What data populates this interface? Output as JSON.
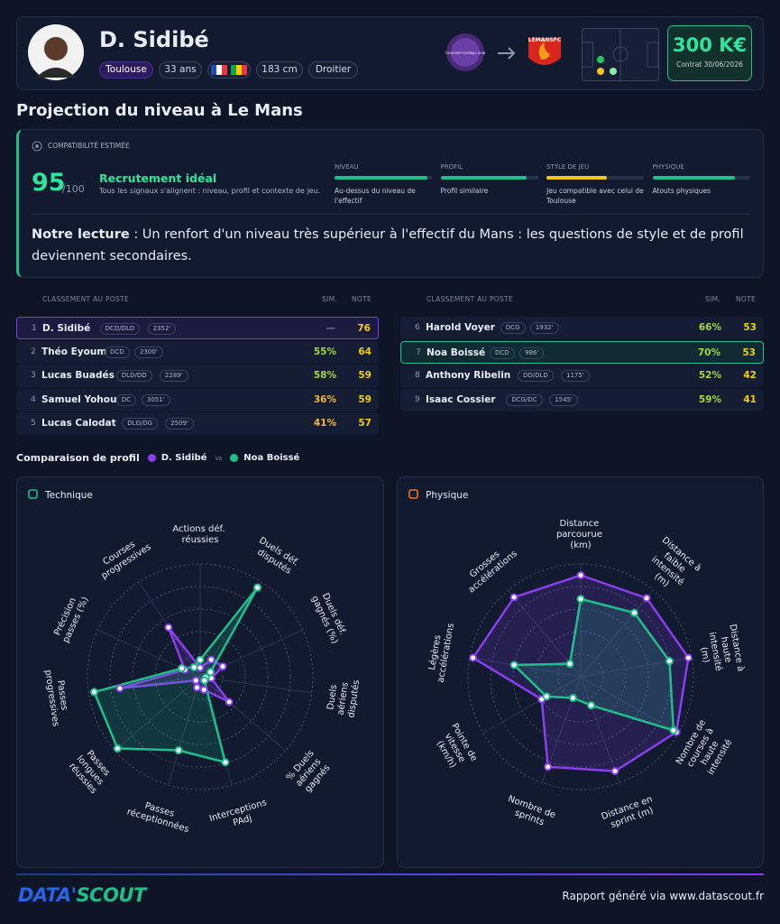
{
  "header": {
    "name": "D. Sidibé",
    "club": "Toulouse",
    "age": "33 ans",
    "height": "183 cm",
    "foot": "Droitier",
    "value": "300 K€",
    "contract": "Contrat 30/06/2026",
    "club_from": "TOULOUSE FOOTBALL CLUB",
    "club_to": "LEMANSFC"
  },
  "section_title": "Projection du niveau à Le Mans",
  "compatibility": {
    "label": "COMPATIBILITÉ ESTIMÉE",
    "score": 95,
    "max": "/100",
    "verdict": "Recrutement idéal",
    "summary": "Tous les signaux s'alignent : niveau, profil et contexte de jeu.",
    "bar_lim": [
      0,
      100
    ],
    "criteria": [
      {
        "name": "NIVEAU",
        "value": 95,
        "color": "#1fbf8a",
        "note": "Au-dessus du niveau de l'effectif"
      },
      {
        "name": "PROFIL",
        "value": 88,
        "color": "#1fbf8a",
        "note": "Profil similaire"
      },
      {
        "name": "STYLE DE JEU",
        "value": 62,
        "color": "#f5c518",
        "note": "Jeu compatible avec celui de Toulouse"
      },
      {
        "name": "PHYSIQUE",
        "value": 85,
        "color": "#1fbf8a",
        "note": "Atouts physiques"
      }
    ]
  },
  "reading": {
    "label": "Notre lecture",
    "text": ": Un renfort d'un niveau très supérieur à l'effectif du Mans : les questions de style et de profil deviennent secondaires."
  },
  "ranking": {
    "headers": [
      "CLASSEMENT AU POSTE",
      "SIM.",
      "NOTE"
    ],
    "rows": [
      {
        "rank": "1",
        "name": "D. Sidibé",
        "position": "DCD/DLD",
        "minutes": "2352'",
        "sim": "—",
        "note": "76",
        "highlight_color": "#7c3aed"
      },
      {
        "rank": "2",
        "name": "Théo Eyoum",
        "position": "DCD",
        "minutes": "2300'",
        "sim": "55%",
        "note": "64"
      },
      {
        "rank": "3",
        "name": "Lucas Buadés",
        "position": "DLD/DD",
        "minutes": "2289'",
        "sim": "58%",
        "note": "59"
      },
      {
        "rank": "4",
        "name": "Samuel Yohou",
        "position": "DC",
        "minutes": "3051'",
        "sim": "36%",
        "note": "59"
      },
      {
        "rank": "5",
        "name": "Lucas Calodat",
        "position": "DLG/DG",
        "minutes": "2509'",
        "sim": "41%",
        "note": "57"
      },
      {
        "rank": "6",
        "name": "Harold Voyer",
        "position": "DCG",
        "minutes": "1932'",
        "sim": "66%",
        "note": "53"
      },
      {
        "rank": "7",
        "name": "Noa Boissé",
        "position": "DCD",
        "minutes": "986'",
        "sim": "70%",
        "note": "53",
        "highlight_color": "#1fbf8a"
      },
      {
        "rank": "8",
        "name": "Anthony Ribelin",
        "position": "DD/DLD",
        "minutes": "1175'",
        "sim": "52%",
        "note": "42"
      },
      {
        "rank": "9",
        "name": "Isaac Cossier",
        "position": "DCG/DC",
        "minutes": "1545'",
        "sim": "59%",
        "note": "41"
      }
    ]
  },
  "comparison": {
    "title": "Comparaison de profil",
    "vs": "vs"
  },
  "chart_data": [
    {
      "type": "radar",
      "title": "Technique",
      "rlim": [
        0,
        100
      ],
      "rticks": [
        20,
        40,
        60,
        80,
        100
      ],
      "axes": [
        "Actions déf. réussies",
        "Duels déf. disputés",
        "Duels déf. gagnés (%)",
        "Duels aériens disputés",
        "% Duels aériens gagnés",
        "Interceptions PAdj",
        "Passes réceptionnées",
        "Passes longues réussies",
        "Passes progressives",
        "Précision passes (%)",
        "Courses progressives"
      ],
      "series": [
        {
          "name": "D. Sidibé",
          "color": "#8b3df0",
          "values": [
            8,
            18,
            22,
            10,
            34,
            12,
            10,
            5,
            72,
            15,
            52
          ]
        },
        {
          "name": "Noa Boissé",
          "color": "#1fbf8a",
          "values": [
            15,
            94,
            10,
            5,
            5,
            79,
            68,
            97,
            95,
            18,
            10
          ]
        }
      ]
    },
    {
      "type": "radar",
      "title": "Physique",
      "rlim": [
        0,
        100
      ],
      "rticks": [
        20,
        40,
        60,
        80,
        100
      ],
      "axes": [
        "Distance parcourue (km)",
        "Distance à faible intensité (m)",
        "Distance à haute intensité (m)",
        "Nombre de courses à haute intensité",
        "Distance en sprint (m)",
        "Nombre de sprints",
        "Pointe de vitesse (km/h)",
        "Légères accélérations",
        "Grosses accélérations"
      ],
      "series": [
        {
          "name": "D. Sidibé",
          "color": "#8b3df0",
          "values": [
            90,
            91,
            97,
            98,
            89,
            85,
            40,
            97,
            92
          ]
        },
        {
          "name": "Noa Boissé",
          "color": "#1fbf8a",
          "values": [
            69,
            74,
            80,
            95,
            27,
            20,
            35,
            60,
            15
          ]
        }
      ]
    }
  ],
  "footer": {
    "logo_a": "DATA'",
    "logo_b": "SCOUT",
    "text": "Rapport généré via www.datascout.fr"
  }
}
